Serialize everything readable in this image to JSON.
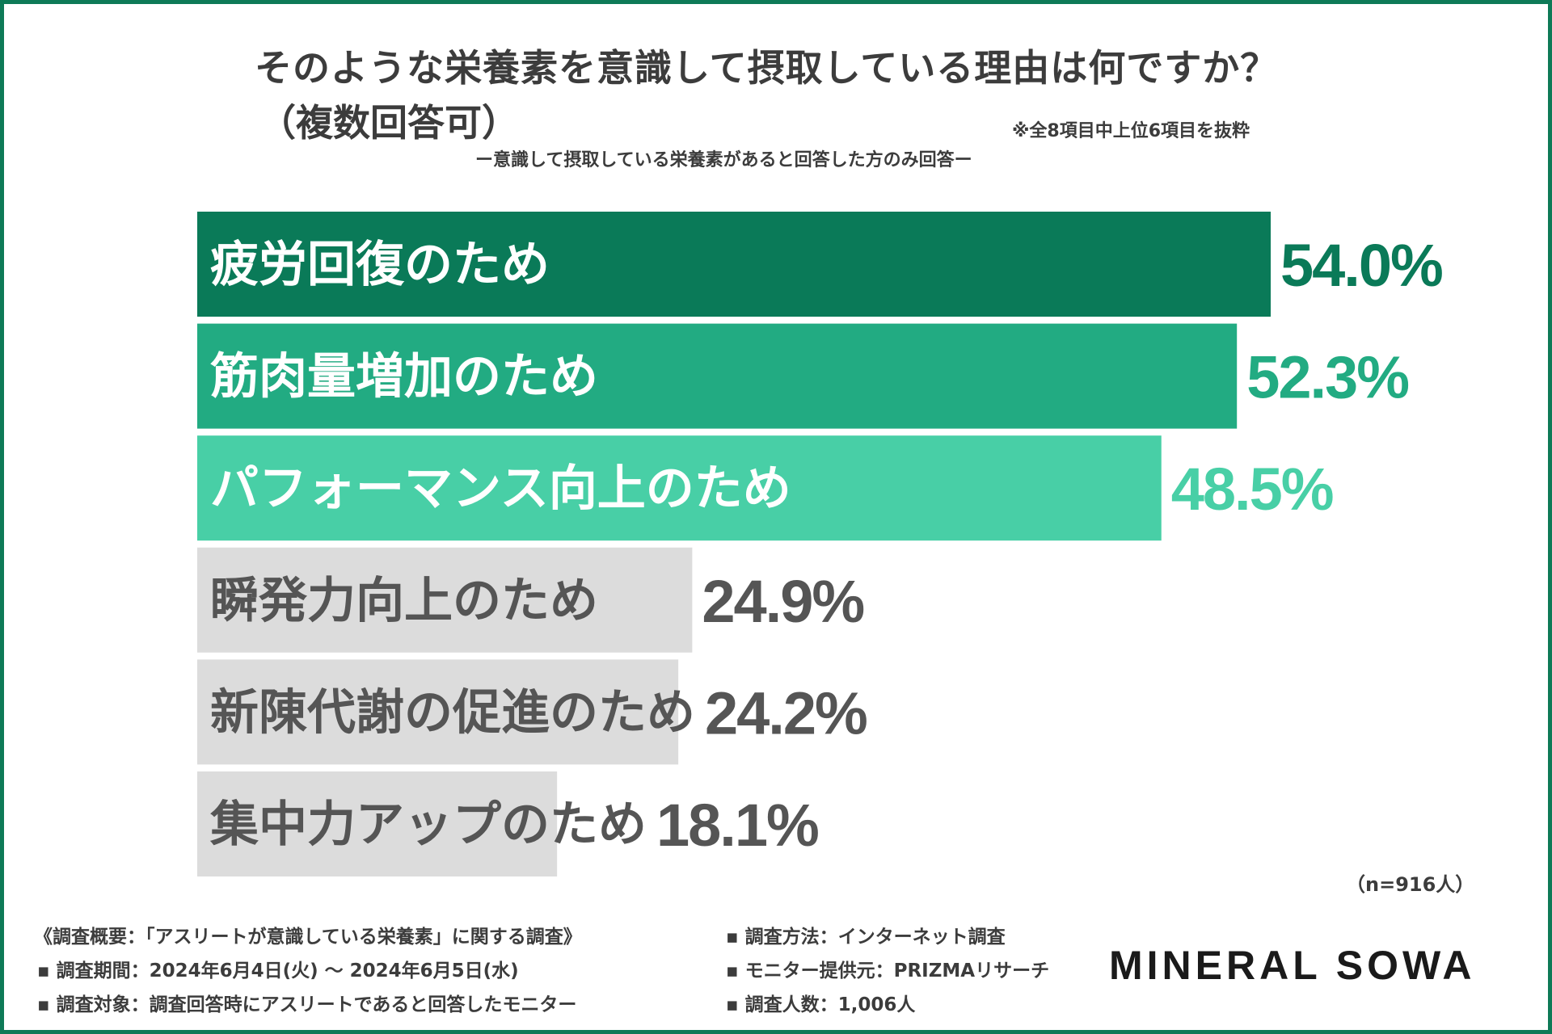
{
  "title_line1": "そのような栄養素を意識して摂取している理由は何ですか？",
  "title_line2": "（複数回答可）",
  "note": "※全8項目中上位6項目を抜粋",
  "subtitle": "ー意識して摂取している栄養素があると回答した方のみ回答ー",
  "chart_data": {
    "type": "bar",
    "orientation": "horizontal",
    "categories": [
      "疲労回復のため",
      "筋肉量増加のため",
      "パフォーマンス向上のため",
      "瞬発力向上のため",
      "新陳代謝の促進のため",
      "集中力アップのため"
    ],
    "values": [
      54.0,
      52.3,
      48.5,
      24.9,
      24.2,
      18.1
    ],
    "value_labels": [
      "54.0%",
      "52.3%",
      "48.5%",
      "24.9%",
      "24.2%",
      "18.1%"
    ],
    "unit": "%",
    "xlim": [
      0,
      54.0
    ],
    "colors": [
      "#0a7a58",
      "#22ab82",
      "#48cfa6",
      "#dcdcdc",
      "#dcdcdc",
      "#dcdcdc"
    ],
    "label_colors": [
      "#ffffff",
      "#ffffff",
      "#ffffff",
      "#555555",
      "#555555",
      "#555555"
    ],
    "value_colors": [
      "#0a7a58",
      "#22ab82",
      "#48cfa6",
      "#555555",
      "#555555",
      "#555555"
    ]
  },
  "sample_size": "（n=916人）",
  "footer": {
    "overview": "《調査概要：「アスリートが意識している栄養素」に関する調査》",
    "period": "▪ 調査期間：2024年6月4日(火) ～ 2024年6月5日(水)",
    "target": "▪ 調査対象：調査回答時にアスリートであると回答したモニター",
    "method": "▪ 調査方法：インターネット調査",
    "provider": "▪ モニター提供元：PRIZMAリサーチ",
    "count": "▪ 調査人数：1,006人"
  },
  "brand": "MINERAL SOWA"
}
